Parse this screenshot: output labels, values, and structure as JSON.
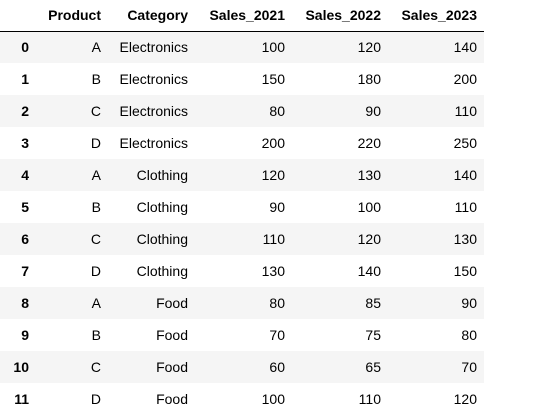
{
  "table": {
    "columns": [
      "",
      "Product",
      "Category",
      "Sales_2021",
      "Sales_2022",
      "Sales_2023"
    ],
    "rows": [
      {
        "index": "0",
        "cells": [
          "A",
          "Electronics",
          "100",
          "120",
          "140"
        ]
      },
      {
        "index": "1",
        "cells": [
          "B",
          "Electronics",
          "150",
          "180",
          "200"
        ]
      },
      {
        "index": "2",
        "cells": [
          "C",
          "Electronics",
          "80",
          "90",
          "110"
        ]
      },
      {
        "index": "3",
        "cells": [
          "D",
          "Electronics",
          "200",
          "220",
          "250"
        ]
      },
      {
        "index": "4",
        "cells": [
          "A",
          "Clothing",
          "120",
          "130",
          "140"
        ]
      },
      {
        "index": "5",
        "cells": [
          "B",
          "Clothing",
          "90",
          "100",
          "110"
        ]
      },
      {
        "index": "6",
        "cells": [
          "C",
          "Clothing",
          "110",
          "120",
          "130"
        ]
      },
      {
        "index": "7",
        "cells": [
          "D",
          "Clothing",
          "130",
          "140",
          "150"
        ]
      },
      {
        "index": "8",
        "cells": [
          "A",
          "Food",
          "80",
          "85",
          "90"
        ]
      },
      {
        "index": "9",
        "cells": [
          "B",
          "Food",
          "70",
          "75",
          "80"
        ]
      },
      {
        "index": "10",
        "cells": [
          "C",
          "Food",
          "60",
          "65",
          "70"
        ]
      },
      {
        "index": "11",
        "cells": [
          "D",
          "Food",
          "100",
          "110",
          "120"
        ]
      }
    ]
  },
  "colors": {
    "striped_row_background": "#f5f5f5",
    "header_border": "#000000"
  }
}
